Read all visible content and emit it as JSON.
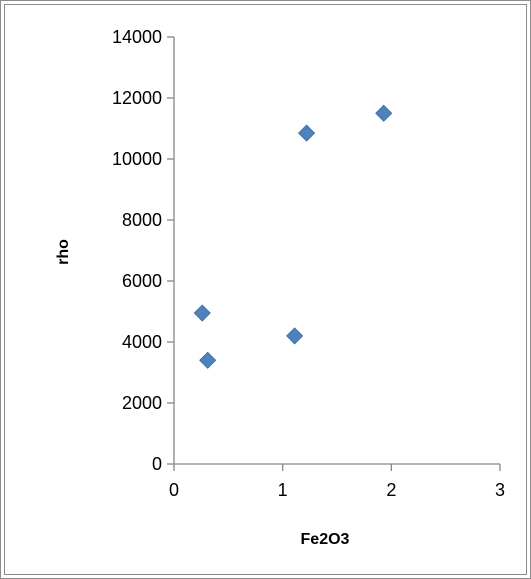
{
  "chart_data": {
    "type": "scatter",
    "title": "",
    "xlabel": "Fe2O3",
    "ylabel": "rho",
    "xlim": [
      0,
      3
    ],
    "ylim": [
      0,
      14000
    ],
    "x_ticks": [
      0,
      1,
      2,
      3
    ],
    "y_ticks": [
      0,
      2000,
      4000,
      6000,
      8000,
      10000,
      12000,
      14000
    ],
    "grid": false,
    "legend": "none",
    "marker": "diamond",
    "marker_color": "#4f81bd",
    "series": [
      {
        "points": [
          {
            "x": 0.26,
            "y": 4950
          },
          {
            "x": 0.31,
            "y": 3400
          },
          {
            "x": 1.11,
            "y": 4200
          },
          {
            "x": 1.22,
            "y": 10850
          },
          {
            "x": 1.93,
            "y": 11500
          }
        ]
      }
    ]
  }
}
